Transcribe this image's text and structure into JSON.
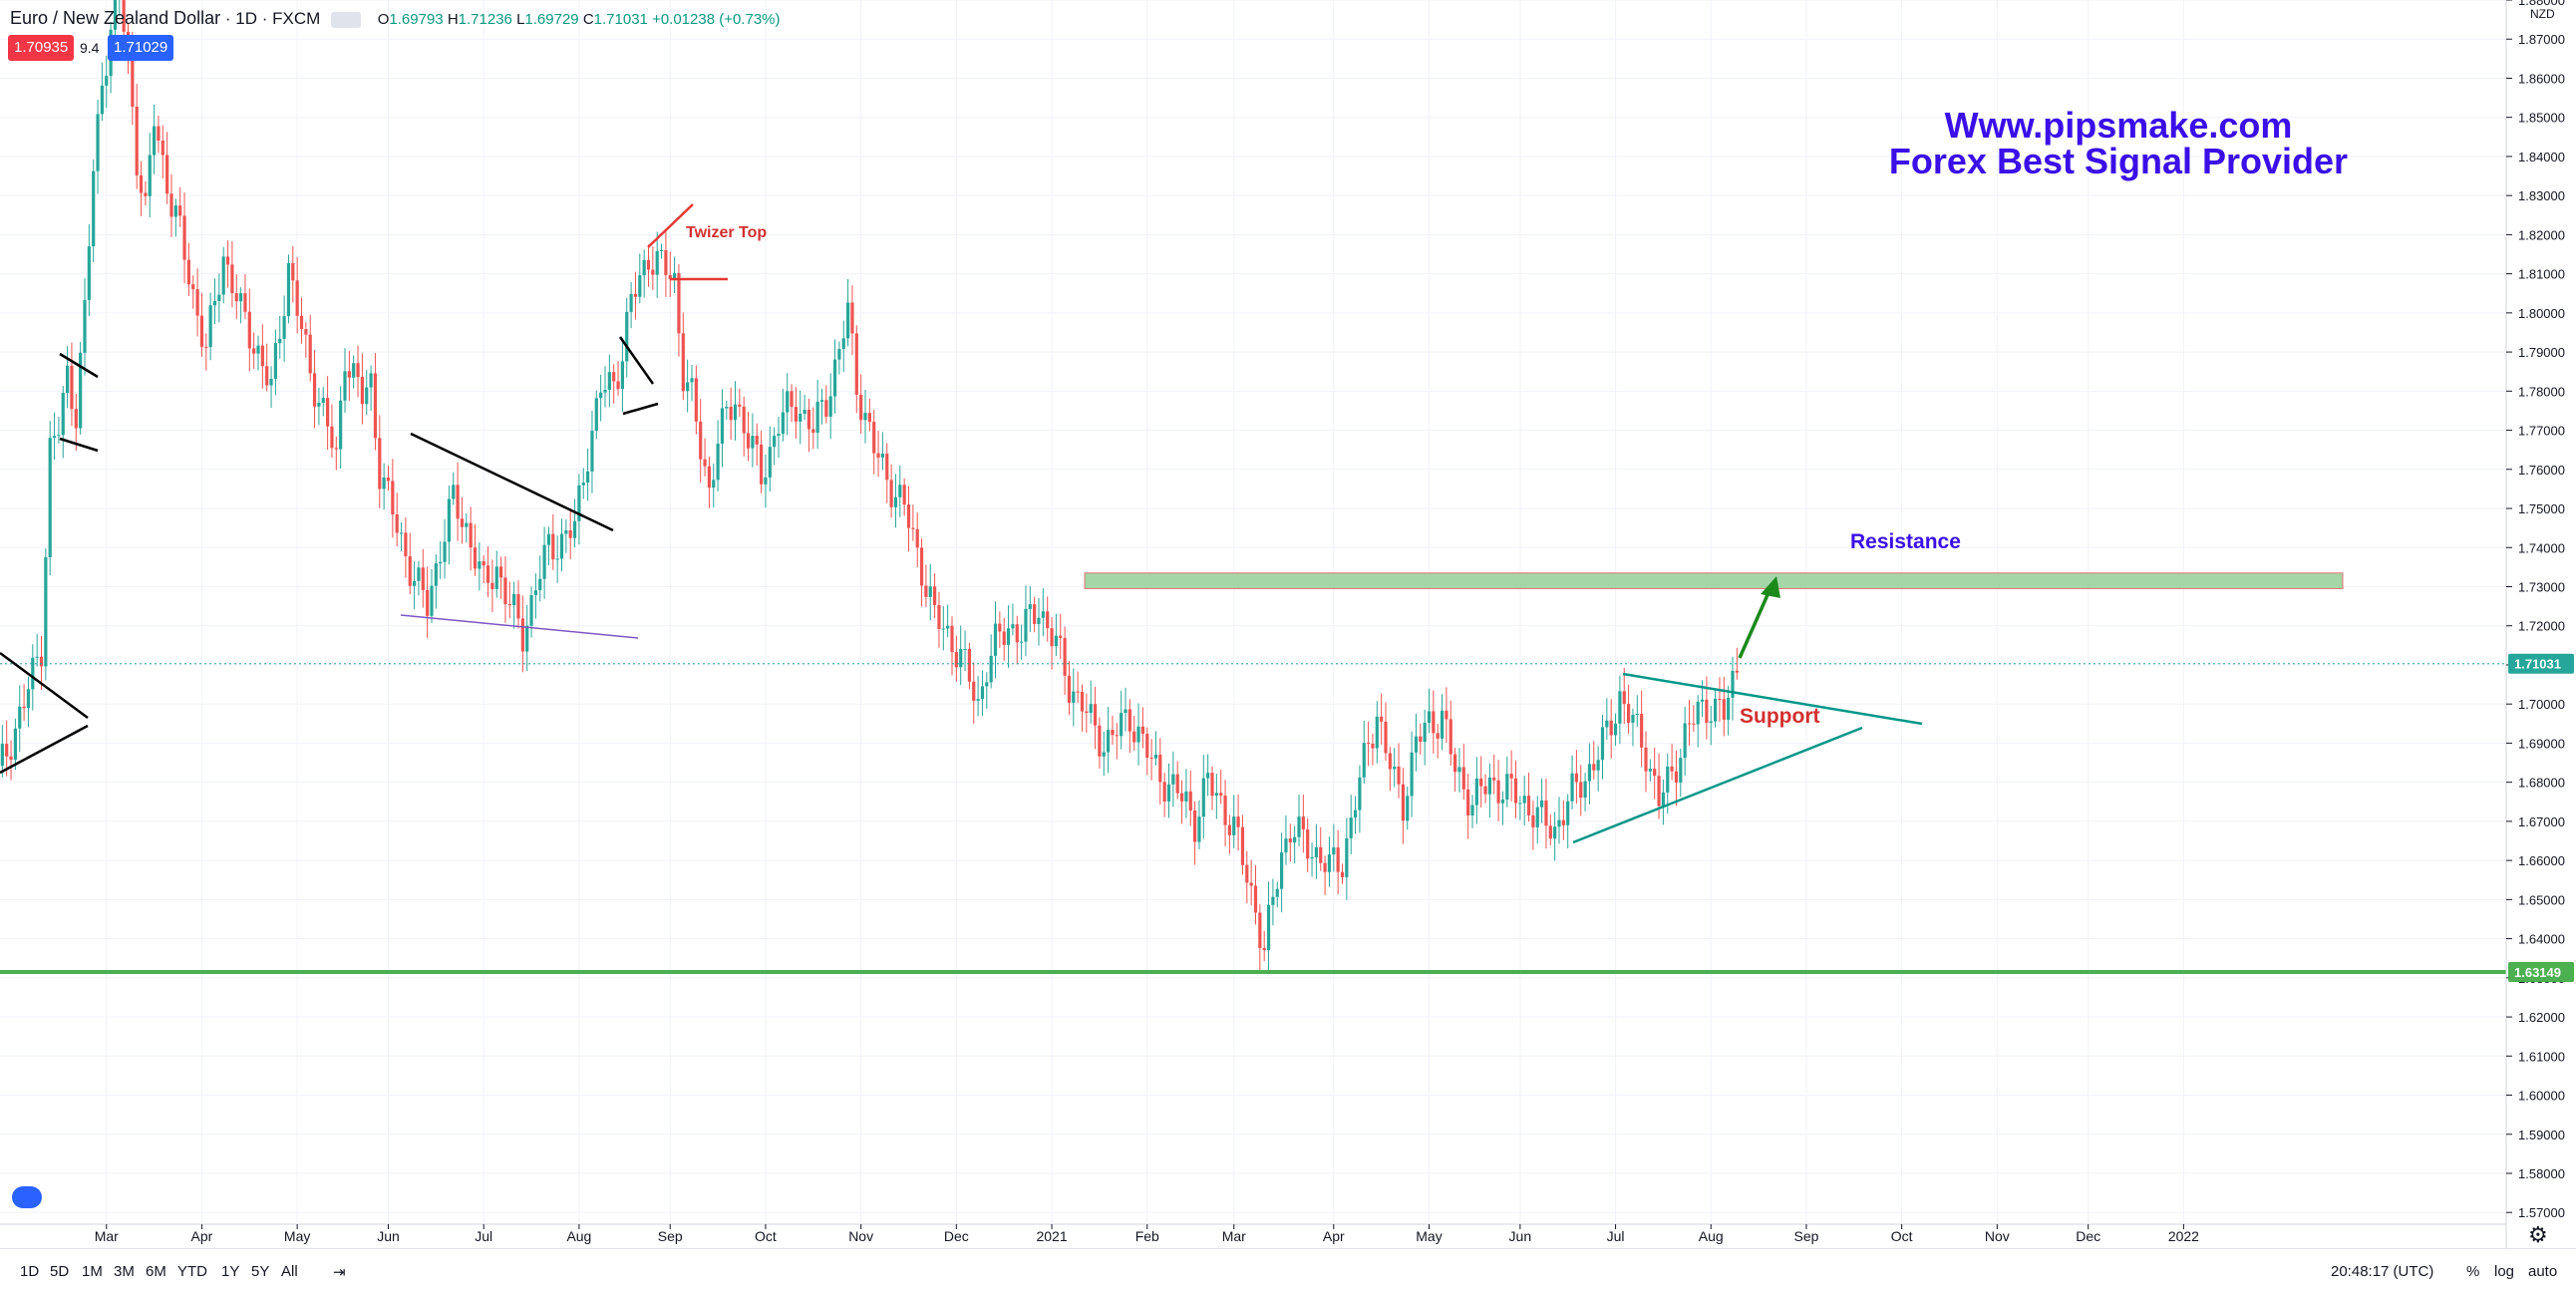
{
  "header": {
    "symbol": "Euro / New Zealand Dollar",
    "interval": "1D",
    "exchange": "FXCM",
    "ohlc": {
      "o": "1.69793",
      "h": "1.71236",
      "l": "1.69729",
      "c": "1.71031",
      "chg": "+0.01238 (+0.73%)"
    },
    "sell_price": "1.70935",
    "spread": "9.4",
    "buy_price": "1.71029"
  },
  "annotations": {
    "brand_line1": "Www.pipsmake.com",
    "brand_line2": "Forex Best Signal Provider",
    "resistance_label": "Resistance",
    "support_label": "Support",
    "twizer_label": "Twizer Top"
  },
  "axis": {
    "currency": "NZD",
    "price_ticks": [
      "1.88000",
      "1.87000",
      "1.86000",
      "1.85000",
      "1.84000",
      "1.83000",
      "1.82000",
      "1.81000",
      "1.80000",
      "1.79000",
      "1.78000",
      "1.77000",
      "1.76000",
      "1.75000",
      "1.74000",
      "1.73000",
      "1.72000",
      "1.71000",
      "1.70000",
      "1.69000",
      "1.68000",
      "1.67000",
      "1.66000",
      "1.65000",
      "1.64000",
      "1.63000",
      "1.62000",
      "1.61000",
      "1.60000",
      "1.59000",
      "1.58000",
      "1.57000"
    ],
    "last_price_label": "1.71031",
    "support_price_label": "1.63149",
    "time_ticks": [
      {
        "label": "Mar",
        "idx": 25
      },
      {
        "label": "Apr",
        "idx": 47
      },
      {
        "label": "May",
        "idx": 69
      },
      {
        "label": "Jun",
        "idx": 90
      },
      {
        "label": "Jul",
        "idx": 112
      },
      {
        "label": "Aug",
        "idx": 134
      },
      {
        "label": "Sep",
        "idx": 155
      },
      {
        "label": "Oct",
        "idx": 177
      },
      {
        "label": "Nov",
        "idx": 199
      },
      {
        "label": "Dec",
        "idx": 221
      },
      {
        "label": "2021",
        "idx": 243
      },
      {
        "label": "Feb",
        "idx": 265
      },
      {
        "label": "Mar",
        "idx": 285
      },
      {
        "label": "Apr",
        "idx": 308
      },
      {
        "label": "May",
        "idx": 330
      },
      {
        "label": "Jun",
        "idx": 351
      },
      {
        "label": "Jul",
        "idx": 373
      },
      {
        "label": "Aug",
        "idx": 395
      },
      {
        "label": "Sep",
        "idx": 417
      },
      {
        "label": "Oct",
        "idx": 439
      },
      {
        "label": "Nov",
        "idx": 461
      },
      {
        "label": "Dec",
        "idx": 482
      },
      {
        "label": "2022",
        "idx": 504
      }
    ]
  },
  "bottombar": {
    "timeframes": [
      "1D",
      "5D",
      "1M",
      "3M",
      "6M",
      "YTD",
      "1Y",
      "5Y",
      "All"
    ],
    "clock": "20:48:17 (UTC)",
    "percent": "%",
    "log": "log",
    "auto": "auto"
  },
  "colors": {
    "up": "#26a69a",
    "down": "#ef5350",
    "support_line": "#4caf50",
    "resistance_zone": "#a5d6a7",
    "brand": "#3a0fe8"
  },
  "chart_data": {
    "type": "candlestick",
    "title": "",
    "xlabel": "",
    "ylabel": "",
    "x_unit": "trading day index (0 = first bar, approx. 2020-02-11; 22 bars per month)",
    "ylim": [
      1.567,
      1.88
    ],
    "grid": true,
    "support_level": 1.63149,
    "last_price": 1.71031,
    "resistance_zone": [
      1.7295,
      1.7335
    ],
    "anchors": [
      [
        0,
        1.682
      ],
      [
        6,
        1.7
      ],
      [
        10,
        1.715
      ],
      [
        12,
        1.765
      ],
      [
        14,
        1.77
      ],
      [
        16,
        1.784
      ],
      [
        18,
        1.775
      ],
      [
        20,
        1.8
      ],
      [
        22,
        1.836
      ],
      [
        24,
        1.86
      ],
      [
        26,
        1.872
      ],
      [
        28,
        1.882
      ],
      [
        30,
        1.865
      ],
      [
        32,
        1.84
      ],
      [
        34,
        1.825
      ],
      [
        36,
        1.85
      ],
      [
        40,
        1.828
      ],
      [
        42,
        1.82
      ],
      [
        45,
        1.805
      ],
      [
        48,
        1.79
      ],
      [
        52,
        1.815
      ],
      [
        56,
        1.8
      ],
      [
        60,
        1.79
      ],
      [
        63,
        1.78
      ],
      [
        67,
        1.812
      ],
      [
        70,
        1.795
      ],
      [
        72,
        1.785
      ],
      [
        75,
        1.775
      ],
      [
        78,
        1.762
      ],
      [
        80,
        1.79
      ],
      [
        84,
        1.778
      ],
      [
        86,
        1.782
      ],
      [
        88,
        1.76
      ],
      [
        92,
        1.745
      ],
      [
        96,
        1.732
      ],
      [
        99,
        1.725
      ],
      [
        102,
        1.74
      ],
      [
        105,
        1.752
      ],
      [
        108,
        1.745
      ],
      [
        110,
        1.738
      ],
      [
        112,
        1.73
      ],
      [
        115,
        1.735
      ],
      [
        118,
        1.725
      ],
      [
        121,
        1.718
      ],
      [
        124,
        1.73
      ],
      [
        127,
        1.74
      ],
      [
        130,
        1.742
      ],
      [
        133,
        1.745
      ],
      [
        136,
        1.765
      ],
      [
        139,
        1.78
      ],
      [
        142,
        1.782
      ],
      [
        144,
        1.79
      ],
      [
        146,
        1.803
      ],
      [
        148,
        1.808
      ],
      [
        150,
        1.815
      ],
      [
        153,
        1.812
      ],
      [
        156,
        1.808
      ],
      [
        158,
        1.785
      ],
      [
        160,
        1.778
      ],
      [
        162,
        1.765
      ],
      [
        164,
        1.755
      ],
      [
        166,
        1.768
      ],
      [
        170,
        1.778
      ],
      [
        174,
        1.765
      ],
      [
        176,
        1.758
      ],
      [
        180,
        1.772
      ],
      [
        184,
        1.777
      ],
      [
        188,
        1.77
      ],
      [
        191,
        1.778
      ],
      [
        194,
        1.79
      ],
      [
        196,
        1.8
      ],
      [
        198,
        1.782
      ],
      [
        202,
        1.765
      ],
      [
        205,
        1.758
      ],
      [
        209,
        1.75
      ],
      [
        213,
        1.735
      ],
      [
        216,
        1.722
      ],
      [
        219,
        1.718
      ],
      [
        222,
        1.712
      ],
      [
        226,
        1.7
      ],
      [
        228,
        1.71
      ],
      [
        230,
        1.715
      ],
      [
        233,
        1.72
      ],
      [
        236,
        1.718
      ],
      [
        240,
        1.725
      ],
      [
        244,
        1.715
      ],
      [
        247,
        1.705
      ],
      [
        250,
        1.7
      ],
      [
        252,
        1.695
      ],
      [
        255,
        1.69
      ],
      [
        258,
        1.693
      ],
      [
        261,
        1.697
      ],
      [
        264,
        1.69
      ],
      [
        266,
        1.685
      ],
      [
        268,
        1.682
      ],
      [
        271,
        1.678
      ],
      [
        274,
        1.675
      ],
      [
        276,
        1.67
      ],
      [
        279,
        1.68
      ],
      [
        282,
        1.675
      ],
      [
        285,
        1.668
      ],
      [
        287,
        1.66
      ],
      [
        290,
        1.648
      ],
      [
        292,
        1.636
      ],
      [
        294,
        1.65
      ],
      [
        296,
        1.662
      ],
      [
        298,
        1.668
      ],
      [
        301,
        1.665
      ],
      [
        304,
        1.662
      ],
      [
        307,
        1.658
      ],
      [
        310,
        1.66
      ],
      [
        313,
        1.675
      ],
      [
        316,
        1.69
      ],
      [
        318,
        1.698
      ],
      [
        320,
        1.688
      ],
      [
        322,
        1.68
      ],
      [
        324,
        1.675
      ],
      [
        327,
        1.69
      ],
      [
        330,
        1.695
      ],
      [
        333,
        1.697
      ],
      [
        336,
        1.683
      ],
      [
        340,
        1.675
      ],
      [
        344,
        1.68
      ],
      [
        348,
        1.678
      ],
      [
        352,
        1.675
      ],
      [
        356,
        1.67
      ],
      [
        359,
        1.668
      ],
      [
        362,
        1.675
      ],
      [
        365,
        1.68
      ],
      [
        368,
        1.685
      ],
      [
        371,
        1.692
      ],
      [
        374,
        1.702
      ],
      [
        377,
        1.695
      ],
      [
        380,
        1.688
      ],
      [
        383,
        1.675
      ],
      [
        386,
        1.682
      ],
      [
        389,
        1.692
      ],
      [
        392,
        1.698
      ],
      [
        395,
        1.7
      ],
      [
        398,
        1.697
      ],
      [
        401,
        1.71
      ]
    ]
  }
}
